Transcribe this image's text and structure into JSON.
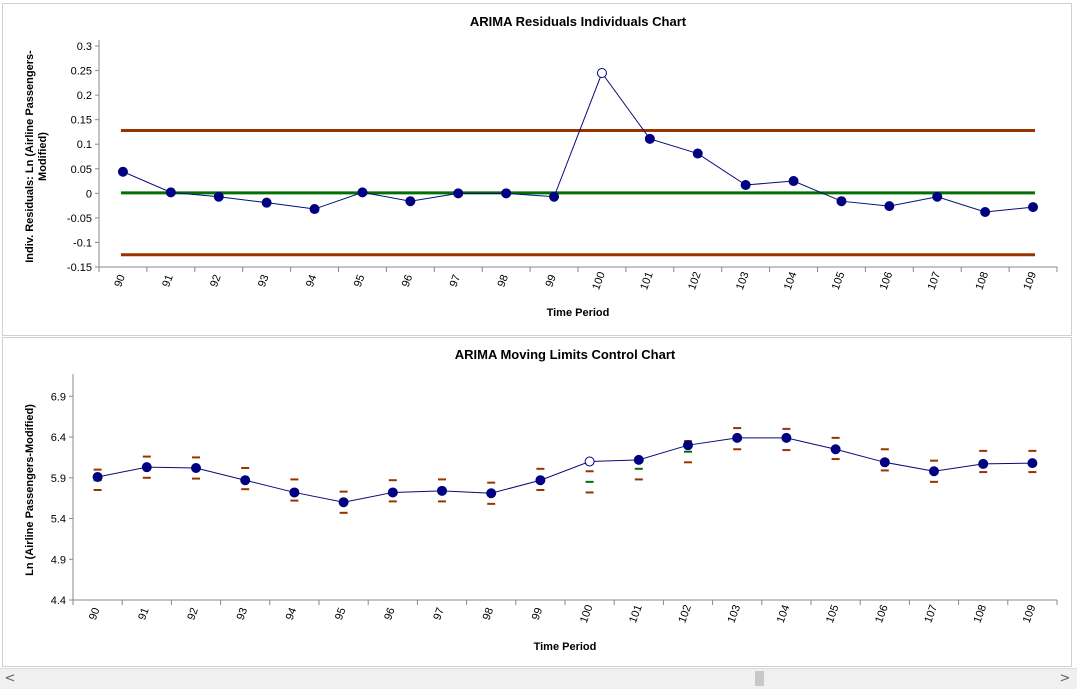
{
  "chart_data": [
    {
      "type": "line",
      "title": "ARIMA Residuals Individuals Chart",
      "xlabel": "Time Period",
      "ylabel_lines": [
        "Indiv. Residuals: Ln (Airline Passengers-",
        "Modified)"
      ],
      "categories": [
        "90",
        "91",
        "92",
        "93",
        "94",
        "95",
        "96",
        "97",
        "98",
        "99",
        "100",
        "101",
        "102",
        "103",
        "104",
        "105",
        "106",
        "107",
        "108",
        "109"
      ],
      "series": [
        {
          "values": [
            0.044,
            0.002,
            -0.007,
            -0.019,
            -0.032,
            0.002,
            -0.016,
            0.0,
            0.0,
            -0.007,
            0.245,
            0.111,
            0.081,
            0.017,
            0.025,
            -0.016,
            -0.026,
            -0.007,
            -0.038,
            -0.028
          ],
          "hollow": [
            10
          ]
        }
      ],
      "limits": {
        "ucl": 0.128,
        "center": 0.001,
        "lcl": -0.125
      },
      "ylim": [
        -0.15,
        0.3
      ],
      "yticks": [
        "0.3",
        "0.25",
        "0.2",
        "0.15",
        "0.1",
        "0.05",
        "0",
        "-0.05",
        "-0.1",
        "-0.15"
      ],
      "colors": {
        "line": "#0a0a78",
        "marker": "#000080",
        "center": "#007000",
        "limit": "#993300"
      }
    },
    {
      "type": "line",
      "title": "ARIMA Moving Limits Control Chart",
      "xlabel": "Time Period",
      "ylabel_lines": [
        "Ln (Airline Passengers-Modified)"
      ],
      "categories": [
        "90",
        "91",
        "92",
        "93",
        "94",
        "95",
        "96",
        "97",
        "98",
        "99",
        "100",
        "101",
        "102",
        "103",
        "104",
        "105",
        "106",
        "107",
        "108",
        "109"
      ],
      "series": [
        {
          "values": [
            5.91,
            6.03,
            6.02,
            5.87,
            5.72,
            5.6,
            5.72,
            5.74,
            5.71,
            5.87,
            6.1,
            6.12,
            6.3,
            6.39,
            6.39,
            6.25,
            6.09,
            5.98,
            6.07,
            6.08
          ],
          "hollow": [
            10
          ]
        }
      ],
      "center_values": [
        5.87,
        6.03,
        6.02,
        5.89,
        5.75,
        5.6,
        5.74,
        5.74,
        5.71,
        5.88,
        5.85,
        6.01,
        6.22,
        6.38,
        6.37,
        6.26,
        6.12,
        5.98,
        6.1,
        6.1
      ],
      "ucl_values": [
        6.0,
        6.16,
        6.15,
        6.02,
        5.88,
        5.73,
        5.87,
        5.88,
        5.84,
        6.01,
        5.98,
        6.14,
        6.35,
        6.51,
        6.5,
        6.39,
        6.25,
        6.11,
        6.23,
        6.23
      ],
      "lcl_values": [
        5.75,
        5.9,
        5.89,
        5.76,
        5.62,
        5.47,
        5.61,
        5.61,
        5.58,
        5.75,
        5.72,
        5.88,
        6.09,
        6.25,
        6.24,
        6.13,
        5.99,
        5.85,
        5.97,
        5.97
      ],
      "ylim": [
        4.4,
        7.1
      ],
      "yticks": [
        "6.9",
        "6.4",
        "5.9",
        "5.4",
        "4.9",
        "4.4"
      ],
      "colors": {
        "line": "#0a0a78",
        "marker": "#000080",
        "center": "#007000",
        "limit": "#993300"
      }
    }
  ],
  "scrollbar": {
    "left_arrow": "<",
    "right_arrow": ">"
  }
}
